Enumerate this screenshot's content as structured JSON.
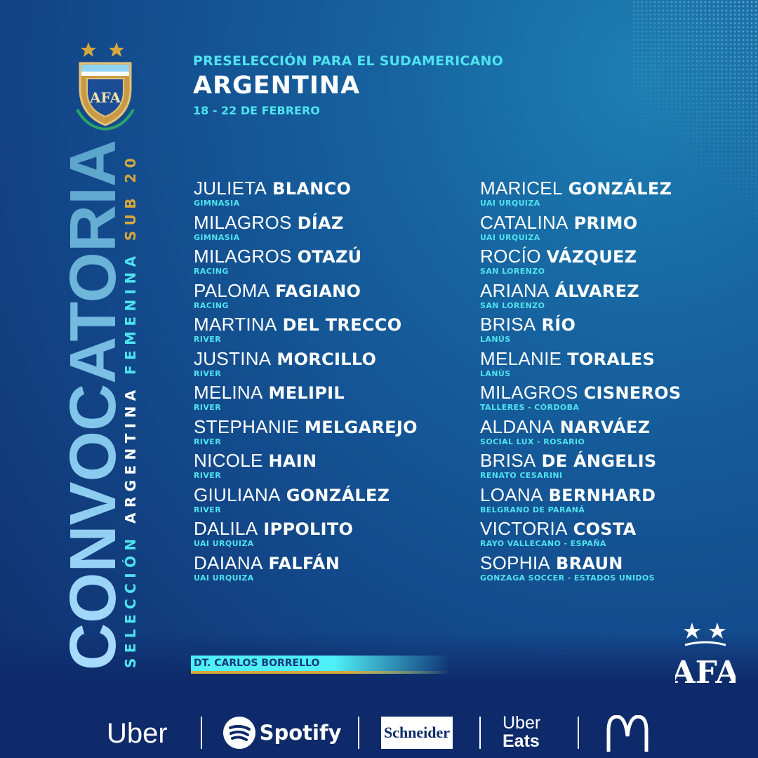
{
  "header": {
    "subtitle": "PRESELECCIÓN PARA EL SUDAMERICANO",
    "title": "ARGENTINA",
    "dates": "18 - 22  DE FEBRERO"
  },
  "side": {
    "main": "CONVOCATORIA",
    "seleccion": "SELECCIÓN",
    "argentina": "ARGENTINA",
    "femenina": "FEMENINA",
    "category": "SUB 20"
  },
  "players_left": [
    {
      "first": "JULIETA",
      "last": "BLANCO",
      "club": "GIMNASIA"
    },
    {
      "first": "MILAGROS",
      "last": "DÍAZ",
      "club": "GIMNASIA"
    },
    {
      "first": "MILAGROS",
      "last": "OTAZÚ",
      "club": "RACING"
    },
    {
      "first": "PALOMA",
      "last": "FAGIANO",
      "club": "RACING"
    },
    {
      "first": "MARTINA",
      "last": "DEL TRECCO",
      "club": "RIVER"
    },
    {
      "first": "JUSTINA",
      "last": "MORCILLO",
      "club": "RIVER"
    },
    {
      "first": "MELINA",
      "last": "MELIPIL",
      "club": "RIVER"
    },
    {
      "first": "STEPHANIE",
      "last": "MELGAREJO",
      "club": "RIVER"
    },
    {
      "first": "NICOLE",
      "last": "HAIN",
      "club": "RIVER"
    },
    {
      "first": "GIULIANA",
      "last": "GONZÁLEZ",
      "club": "RIVER"
    },
    {
      "first": "DALILA",
      "last": "IPPOLITO",
      "club": "UAI URQUIZA"
    },
    {
      "first": "DAIANA",
      "last": "FALFÁN",
      "club": "UAI URQUIZA"
    }
  ],
  "players_right": [
    {
      "first": "MARICEL",
      "last": "GONZÁLEZ",
      "club": "UAI URQUIZA"
    },
    {
      "first": "CATALINA",
      "last": "PRIMO",
      "club": "UAI URQUIZA"
    },
    {
      "first": "ROCÍO",
      "last": "VÁZQUEZ",
      "club": "SAN LORENZO"
    },
    {
      "first": "ARIANA",
      "last": "ÁLVAREZ",
      "club": "SAN LORENZO"
    },
    {
      "first": "BRISA",
      "last": "RÍO",
      "club": "LANÚS"
    },
    {
      "first": "MELANIE",
      "last": "TORALES",
      "club": "LANÙS"
    },
    {
      "first": "MILAGROS",
      "last": "CISNEROS",
      "club": "TALLERES - CÓRDOBA"
    },
    {
      "first": "ALDANA",
      "last": "NARVÁEZ",
      "club": "SOCIAL LUX - ROSARIO"
    },
    {
      "first": "BRISA",
      "last": "DE ÁNGELIS",
      "club": "RENATO CESARINI"
    },
    {
      "first": "LOANA",
      "last": "BERNHARD",
      "club": "BELGRANO DE PARANÁ"
    },
    {
      "first": "VICTORIA",
      "last": "COSTA",
      "club": "RAYO VALLECANO - ESPAÑA"
    },
    {
      "first": "SOPHIA",
      "last": "BRAUN",
      "club": "GONZAGA SOCCER - ESTADOS UNIDOS"
    }
  ],
  "coach": "DT. CARLOS BORRELLO",
  "logos": {
    "crest": "AFA",
    "afa": "AFA"
  },
  "sponsors": {
    "uber": "Uber",
    "spotify": "Spotify",
    "schneider": "Schneider",
    "ubereats_1": "Uber",
    "ubereats_2": "Eats",
    "mcdonalds": "M"
  },
  "colors": {
    "accent_cyan": "#4fe3f0",
    "gold": "#d6a73a",
    "background": "#134a8c",
    "navy": "#0e2a6a"
  }
}
